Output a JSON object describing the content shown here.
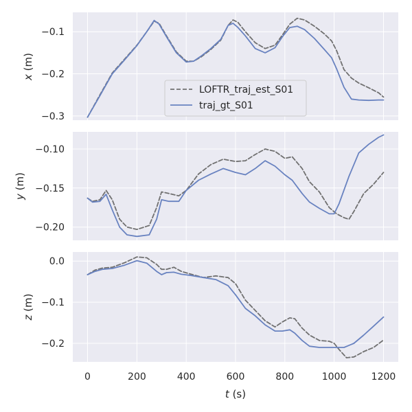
{
  "chart_data": [
    {
      "type": "line",
      "ylabel": "x (m)",
      "ylabel_var": "x",
      "ylabel_unit": " (m)",
      "ylim": [
        -0.31,
        -0.054
      ],
      "yticks": [
        -0.3,
        -0.2,
        -0.1
      ],
      "ytick_labels": [
        "−0.3",
        "−0.2",
        "−0.1"
      ],
      "xlim": [
        -60,
        1260
      ],
      "xticks": [
        0,
        200,
        400,
        600,
        800,
        1000,
        1200
      ],
      "show_xtick_labels": false,
      "legend": {
        "placement": "center"
      },
      "series": [
        {
          "name": "LOFTR_traj_est_S01",
          "color": "#707070",
          "dash": true,
          "x": [
            0,
            50,
            100,
            150,
            200,
            240,
            270,
            290,
            320,
            360,
            400,
            430,
            460,
            500,
            540,
            570,
            590,
            610,
            640,
            680,
            720,
            760,
            790,
            820,
            850,
            880,
            920,
            960,
            990,
            1010,
            1040,
            1070,
            1100,
            1140,
            1180,
            1200
          ],
          "y": [
            -0.303,
            -0.25,
            -0.198,
            -0.165,
            -0.132,
            -0.1,
            -0.075,
            -0.08,
            -0.11,
            -0.148,
            -0.17,
            -0.17,
            -0.16,
            -0.142,
            -0.12,
            -0.085,
            -0.072,
            -0.078,
            -0.1,
            -0.126,
            -0.14,
            -0.132,
            -0.108,
            -0.082,
            -0.068,
            -0.072,
            -0.087,
            -0.105,
            -0.122,
            -0.145,
            -0.19,
            -0.21,
            -0.222,
            -0.233,
            -0.245,
            -0.255
          ]
        },
        {
          "name": "traj_gt_S01",
          "color": "#6882c0",
          "dash": false,
          "x": [
            0,
            50,
            100,
            150,
            200,
            240,
            270,
            290,
            320,
            360,
            400,
            430,
            460,
            500,
            540,
            570,
            590,
            610,
            640,
            680,
            720,
            760,
            790,
            820,
            850,
            880,
            920,
            960,
            990,
            1010,
            1040,
            1070,
            1100,
            1140,
            1180,
            1200
          ],
          "y": [
            -0.303,
            -0.252,
            -0.2,
            -0.167,
            -0.133,
            -0.1,
            -0.073,
            -0.082,
            -0.112,
            -0.15,
            -0.172,
            -0.17,
            -0.158,
            -0.14,
            -0.118,
            -0.085,
            -0.08,
            -0.09,
            -0.11,
            -0.14,
            -0.15,
            -0.138,
            -0.112,
            -0.09,
            -0.087,
            -0.095,
            -0.116,
            -0.142,
            -0.162,
            -0.188,
            -0.232,
            -0.26,
            -0.262,
            -0.263,
            -0.262,
            -0.262
          ]
        }
      ]
    },
    {
      "type": "line",
      "ylabel": "y (m)",
      "ylabel_var": "y",
      "ylabel_unit": " (m)",
      "ylim": [
        -0.217,
        -0.078
      ],
      "yticks": [
        -0.2,
        -0.15,
        -0.1
      ],
      "ytick_labels": [
        "−0.20",
        "−0.15",
        "−0.10"
      ],
      "xlim": [
        -60,
        1260
      ],
      "xticks": [
        0,
        200,
        400,
        600,
        800,
        1000,
        1200
      ],
      "show_xtick_labels": false,
      "series": [
        {
          "name": "LOFTR_traj_est_S01",
          "color": "#707070",
          "dash": true,
          "x": [
            0,
            20,
            50,
            75,
            100,
            130,
            160,
            200,
            250,
            280,
            300,
            330,
            370,
            400,
            450,
            500,
            550,
            600,
            640,
            680,
            720,
            760,
            800,
            830,
            870,
            900,
            940,
            980,
            1010,
            1040,
            1060,
            1080,
            1120,
            1160,
            1200
          ],
          "y": [
            -0.163,
            -0.167,
            -0.165,
            -0.153,
            -0.165,
            -0.19,
            -0.2,
            -0.203,
            -0.198,
            -0.175,
            -0.155,
            -0.157,
            -0.16,
            -0.153,
            -0.132,
            -0.12,
            -0.113,
            -0.116,
            -0.115,
            -0.107,
            -0.1,
            -0.103,
            -0.112,
            -0.11,
            -0.125,
            -0.142,
            -0.155,
            -0.175,
            -0.183,
            -0.188,
            -0.19,
            -0.18,
            -0.157,
            -0.145,
            -0.13
          ]
        },
        {
          "name": "traj_gt_S01",
          "color": "#6882c0",
          "dash": false,
          "x": [
            0,
            20,
            50,
            75,
            100,
            130,
            160,
            200,
            250,
            280,
            300,
            330,
            370,
            400,
            450,
            500,
            550,
            600,
            640,
            680,
            720,
            760,
            800,
            830,
            870,
            900,
            940,
            980,
            1000,
            1020,
            1060,
            1100,
            1140,
            1180,
            1200
          ],
          "y": [
            -0.163,
            -0.168,
            -0.167,
            -0.158,
            -0.178,
            -0.2,
            -0.21,
            -0.212,
            -0.21,
            -0.19,
            -0.165,
            -0.167,
            -0.167,
            -0.153,
            -0.14,
            -0.132,
            -0.125,
            -0.13,
            -0.133,
            -0.125,
            -0.115,
            -0.122,
            -0.133,
            -0.14,
            -0.157,
            -0.168,
            -0.176,
            -0.183,
            -0.183,
            -0.17,
            -0.135,
            -0.105,
            -0.094,
            -0.085,
            -0.082
          ]
        }
      ]
    },
    {
      "type": "line",
      "ylabel": "z (m)",
      "ylabel_var": "z",
      "ylabel_unit": " (m)",
      "ylim": [
        -0.245,
        0.022
      ],
      "yticks": [
        -0.2,
        -0.1,
        0.0
      ],
      "ytick_labels": [
        "−0.2",
        "−0.1",
        "0.0"
      ],
      "xlim": [
        -60,
        1260
      ],
      "xticks": [
        0,
        200,
        400,
        600,
        800,
        1000,
        1200
      ],
      "xtick_labels": [
        "0",
        "200",
        "400",
        "600",
        "800",
        "1000",
        "1200"
      ],
      "show_xtick_labels": true,
      "xlabel": "t (s)",
      "xlabel_var": "t",
      "xlabel_unit": " (s)",
      "series": [
        {
          "name": "LOFTR_traj_est_S01",
          "color": "#707070",
          "dash": true,
          "x": [
            0,
            30,
            60,
            100,
            150,
            200,
            240,
            280,
            300,
            320,
            350,
            380,
            420,
            470,
            520,
            570,
            600,
            640,
            680,
            720,
            760,
            790,
            820,
            840,
            870,
            900,
            940,
            980,
            1000,
            1020,
            1050,
            1080,
            1120,
            1160,
            1200
          ],
          "y": [
            -0.033,
            -0.022,
            -0.017,
            -0.015,
            -0.004,
            0.01,
            0.008,
            -0.008,
            -0.02,
            -0.02,
            -0.015,
            -0.025,
            -0.032,
            -0.04,
            -0.036,
            -0.04,
            -0.055,
            -0.095,
            -0.12,
            -0.145,
            -0.16,
            -0.148,
            -0.138,
            -0.14,
            -0.163,
            -0.18,
            -0.193,
            -0.195,
            -0.2,
            -0.215,
            -0.235,
            -0.233,
            -0.22,
            -0.21,
            -0.192
          ]
        },
        {
          "name": "traj_gt_S01",
          "color": "#6882c0",
          "dash": false,
          "x": [
            0,
            30,
            60,
            100,
            150,
            200,
            240,
            280,
            300,
            320,
            350,
            380,
            420,
            470,
            520,
            570,
            600,
            640,
            680,
            720,
            760,
            790,
            820,
            840,
            870,
            900,
            940,
            980,
            1000,
            1040,
            1080,
            1120,
            1160,
            1200
          ],
          "y": [
            -0.033,
            -0.025,
            -0.02,
            -0.018,
            -0.01,
            0.001,
            -0.005,
            -0.025,
            -0.033,
            -0.028,
            -0.027,
            -0.032,
            -0.035,
            -0.04,
            -0.045,
            -0.06,
            -0.082,
            -0.115,
            -0.133,
            -0.155,
            -0.17,
            -0.17,
            -0.167,
            -0.175,
            -0.193,
            -0.207,
            -0.21,
            -0.21,
            -0.21,
            -0.21,
            -0.2,
            -0.18,
            -0.158,
            -0.136
          ]
        }
      ]
    }
  ]
}
